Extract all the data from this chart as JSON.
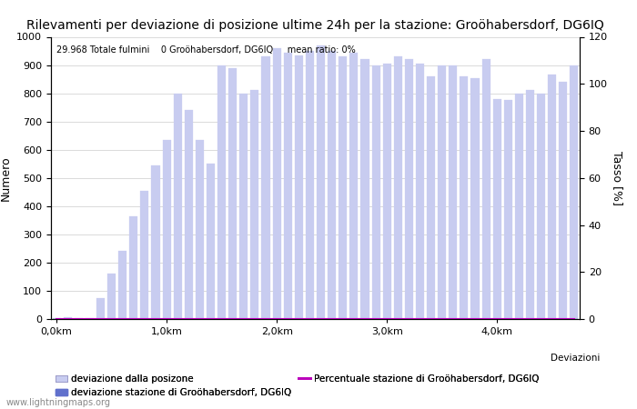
{
  "title": "Rilevamenti per deviazione di posizione ultime 24h per la stazione: Groöhabersdorf, DG6IQ",
  "subtitle": "29.968 Totale fulmini    0 Groöhabersdorf, DG6IQ     mean ratio: 0%",
  "ylabel_left": "Numero",
  "ylabel_right": "Tasso [%]",
  "watermark": "www.lightningmaps.org",
  "legend_label1": "deviazione dalla posizone",
  "legend_label2": "deviazione stazione di Groöhabersdorf, DG6IQ",
  "legend_label3": "Percentuale stazione di Groöhabersdorf, DG6IQ",
  "legend_label4": "Deviazioni",
  "bar_color_light": "#c8ccf0",
  "bar_color_dark": "#6070cc",
  "line_color": "#bb00bb",
  "ylim_left": [
    0,
    1000
  ],
  "ylim_right": [
    0,
    120
  ],
  "xtick_labels": [
    "0,0km",
    "1,0km",
    "2,0km",
    "3,0km",
    "4,0km"
  ],
  "ytick_left": [
    0,
    100,
    200,
    300,
    400,
    500,
    600,
    700,
    800,
    900,
    1000
  ],
  "ytick_right": [
    0,
    20,
    40,
    60,
    80,
    100,
    120
  ],
  "num_bars": 48,
  "bar_values": [
    2,
    5,
    2,
    2,
    75,
    160,
    240,
    365,
    455,
    545,
    635,
    800,
    740,
    635,
    550,
    900,
    890,
    800,
    810,
    930,
    960,
    945,
    935,
    950,
    970,
    950,
    930,
    945,
    920,
    900,
    905,
    930,
    920,
    905,
    860,
    900,
    900,
    860,
    855,
    920,
    780,
    775,
    800,
    810,
    800,
    865,
    840,
    900
  ],
  "bar_values2": [
    0,
    0,
    0,
    0,
    0,
    0,
    0,
    0,
    0,
    0,
    0,
    0,
    0,
    0,
    0,
    0,
    0,
    0,
    0,
    0,
    0,
    0,
    0,
    0,
    0,
    0,
    0,
    0,
    0,
    0,
    0,
    0,
    0,
    0,
    0,
    0,
    0,
    0,
    0,
    0,
    0,
    0,
    0,
    0,
    0,
    0,
    0,
    0
  ],
  "line_values": [
    0,
    0,
    0,
    0,
    0,
    0,
    0,
    0,
    0,
    0,
    0,
    0,
    0,
    0,
    0,
    0,
    0,
    0,
    0,
    0,
    0,
    0,
    0,
    0,
    0,
    0,
    0,
    0,
    0,
    0,
    0,
    0,
    0,
    0,
    0,
    0,
    0,
    0,
    0,
    0,
    0,
    0,
    0,
    0,
    0,
    0,
    0,
    0
  ],
  "background_color": "#ffffff",
  "grid_color": "#cccccc",
  "title_fontsize": 10,
  "axis_fontsize": 9,
  "tick_fontsize": 8
}
